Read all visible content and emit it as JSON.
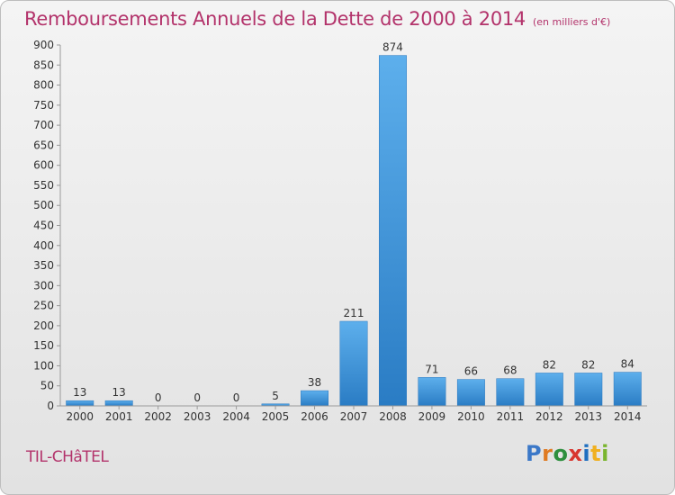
{
  "header": {
    "title": "Remboursements Annuels de la Dette de 2000 à 2014",
    "subtitle": "(en milliers d'€)"
  },
  "footer": {
    "place": "TIL-CHâTEL",
    "logo": "Proxiti",
    "logo_colors": [
      "#3b78c8",
      "#e07b22",
      "#2e8f3e",
      "#d8362f",
      "#1f6fc0",
      "#f0b020",
      "#7ab52e"
    ]
  },
  "chart_data": {
    "type": "bar",
    "title": "Remboursements Annuels de la Dette de 2000 à 2014",
    "subtitle": "(en milliers d'€)",
    "xlabel": "",
    "ylabel": "",
    "categories": [
      "2000",
      "2001",
      "2002",
      "2003",
      "2004",
      "2005",
      "2006",
      "2007",
      "2008",
      "2009",
      "2010",
      "2011",
      "2012",
      "2013",
      "2014"
    ],
    "values": [
      13,
      13,
      0,
      0,
      0,
      5,
      38,
      211,
      874,
      71,
      66,
      68,
      82,
      82,
      84
    ],
    "ylim": [
      0,
      900
    ],
    "yticks": [
      0,
      50,
      100,
      150,
      200,
      250,
      300,
      350,
      400,
      450,
      500,
      550,
      600,
      650,
      700,
      750,
      800,
      850,
      900
    ],
    "grid": false,
    "bar_color": "#3a8fd6",
    "data_labels": true
  }
}
